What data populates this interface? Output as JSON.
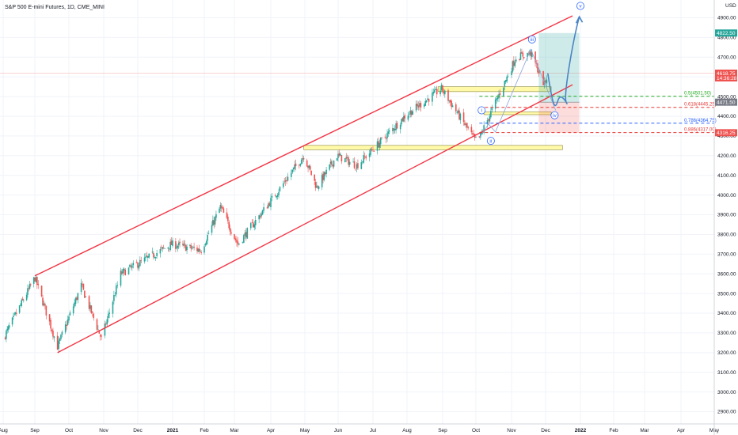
{
  "chart_data": {
    "type": "candlestick",
    "title": "S&P 500 E-mini Futures, 1D, CME_MINI",
    "currency": "USD",
    "x_ticks": [
      "Aug",
      "Sep",
      "Oct",
      "Nov",
      "Dec",
      "2021",
      "Feb",
      "Mar",
      "Apr",
      "May",
      "Jun",
      "Jul",
      "Aug",
      "Sep",
      "Oct",
      "Nov",
      "Dec",
      "2022",
      "Feb",
      "Mar",
      "Apr",
      "May"
    ],
    "y_ticks": [
      2900,
      3000,
      3100,
      3200,
      3300,
      3400,
      3500,
      3600,
      3700,
      3800,
      3900,
      4000,
      4100,
      4200,
      4300,
      4400,
      4500,
      4600,
      4700,
      4800,
      4900
    ],
    "ylim": [
      2850,
      4950
    ],
    "price_tags": [
      {
        "label": "4822.50",
        "value": 4822.5,
        "color": "#26a69a"
      },
      {
        "label": "4618.75",
        "value": 4618.75,
        "color": "#ef5350",
        "sub": "14:36:28"
      },
      {
        "label": "4471.50",
        "value": 4471.5,
        "color": "#787b86"
      },
      {
        "label": "4316.25",
        "value": 4316.25,
        "color": "#ef5350"
      }
    ],
    "fib_levels": [
      {
        "label": "0.5(4501.50)",
        "value": 4501.5,
        "color": "#22ab22"
      },
      {
        "label": "0.618(4445.25)",
        "value": 4445.25,
        "color": "#e53935"
      },
      {
        "label": "0.786(4364.75)",
        "value": 4364.75,
        "color": "#2962ff"
      },
      {
        "label": "0.886(4317.00)",
        "value": 4317.0,
        "color": "#e53935"
      }
    ],
    "waves": [
      "i",
      "ii",
      "iii",
      "iv",
      "v"
    ],
    "channel": {
      "upper": [
        [
          "2020-09-01",
          3590
        ],
        [
          "2021-12-25",
          4910
        ]
      ],
      "lower": [
        [
          "2020-09-21",
          3200
        ],
        [
          "2021-12-25",
          4560
        ]
      ]
    },
    "zones": [
      {
        "y1": 4525,
        "y2": 4550,
        "x1": "2021-08-28",
        "x2": "2021-12-06"
      },
      {
        "y1": 4230,
        "y2": 4252,
        "x1": "2021-04-30",
        "x2": "2021-12-16"
      },
      {
        "y1": 4408,
        "y2": 4422,
        "x1": "2021-10-08",
        "x2": "2021-12-06"
      }
    ],
    "position": {
      "entry": 4471.5,
      "target": 4822.5,
      "stop": 4316.25,
      "x1": "2021-11-25",
      "x2": "2021-12-31"
    },
    "anchors": [
      [
        "2020-08-01",
        3270
      ],
      [
        "2020-09-01",
        3580
      ],
      [
        "2020-09-21",
        3230
      ],
      [
        "2020-10-12",
        3540
      ],
      [
        "2020-10-30",
        3270
      ],
      [
        "2020-11-16",
        3600
      ],
      [
        "2020-12-31",
        3750
      ],
      [
        "2021-01-29",
        3720
      ],
      [
        "2021-02-16",
        3940
      ],
      [
        "2021-03-04",
        3750
      ],
      [
        "2021-04-30",
        4200
      ],
      [
        "2021-05-12",
        4040
      ],
      [
        "2021-05-31",
        4200
      ],
      [
        "2021-06-17",
        4150
      ],
      [
        "2021-07-30",
        4400
      ],
      [
        "2021-08-31",
        4540
      ],
      [
        "2021-09-30",
        4280
      ],
      [
        "2021-10-04",
        4290
      ],
      [
        "2021-11-05",
        4700
      ],
      [
        "2021-11-18",
        4720
      ],
      [
        "2021-11-30",
        4560
      ],
      [
        "2021-12-03",
        4618
      ]
    ],
    "projection": [
      [
        "2021-12-03",
        4618
      ],
      [
        "2021-12-12",
        4480
      ],
      [
        "2021-12-18",
        4470
      ],
      [
        "2021-12-31",
        4905
      ]
    ]
  }
}
